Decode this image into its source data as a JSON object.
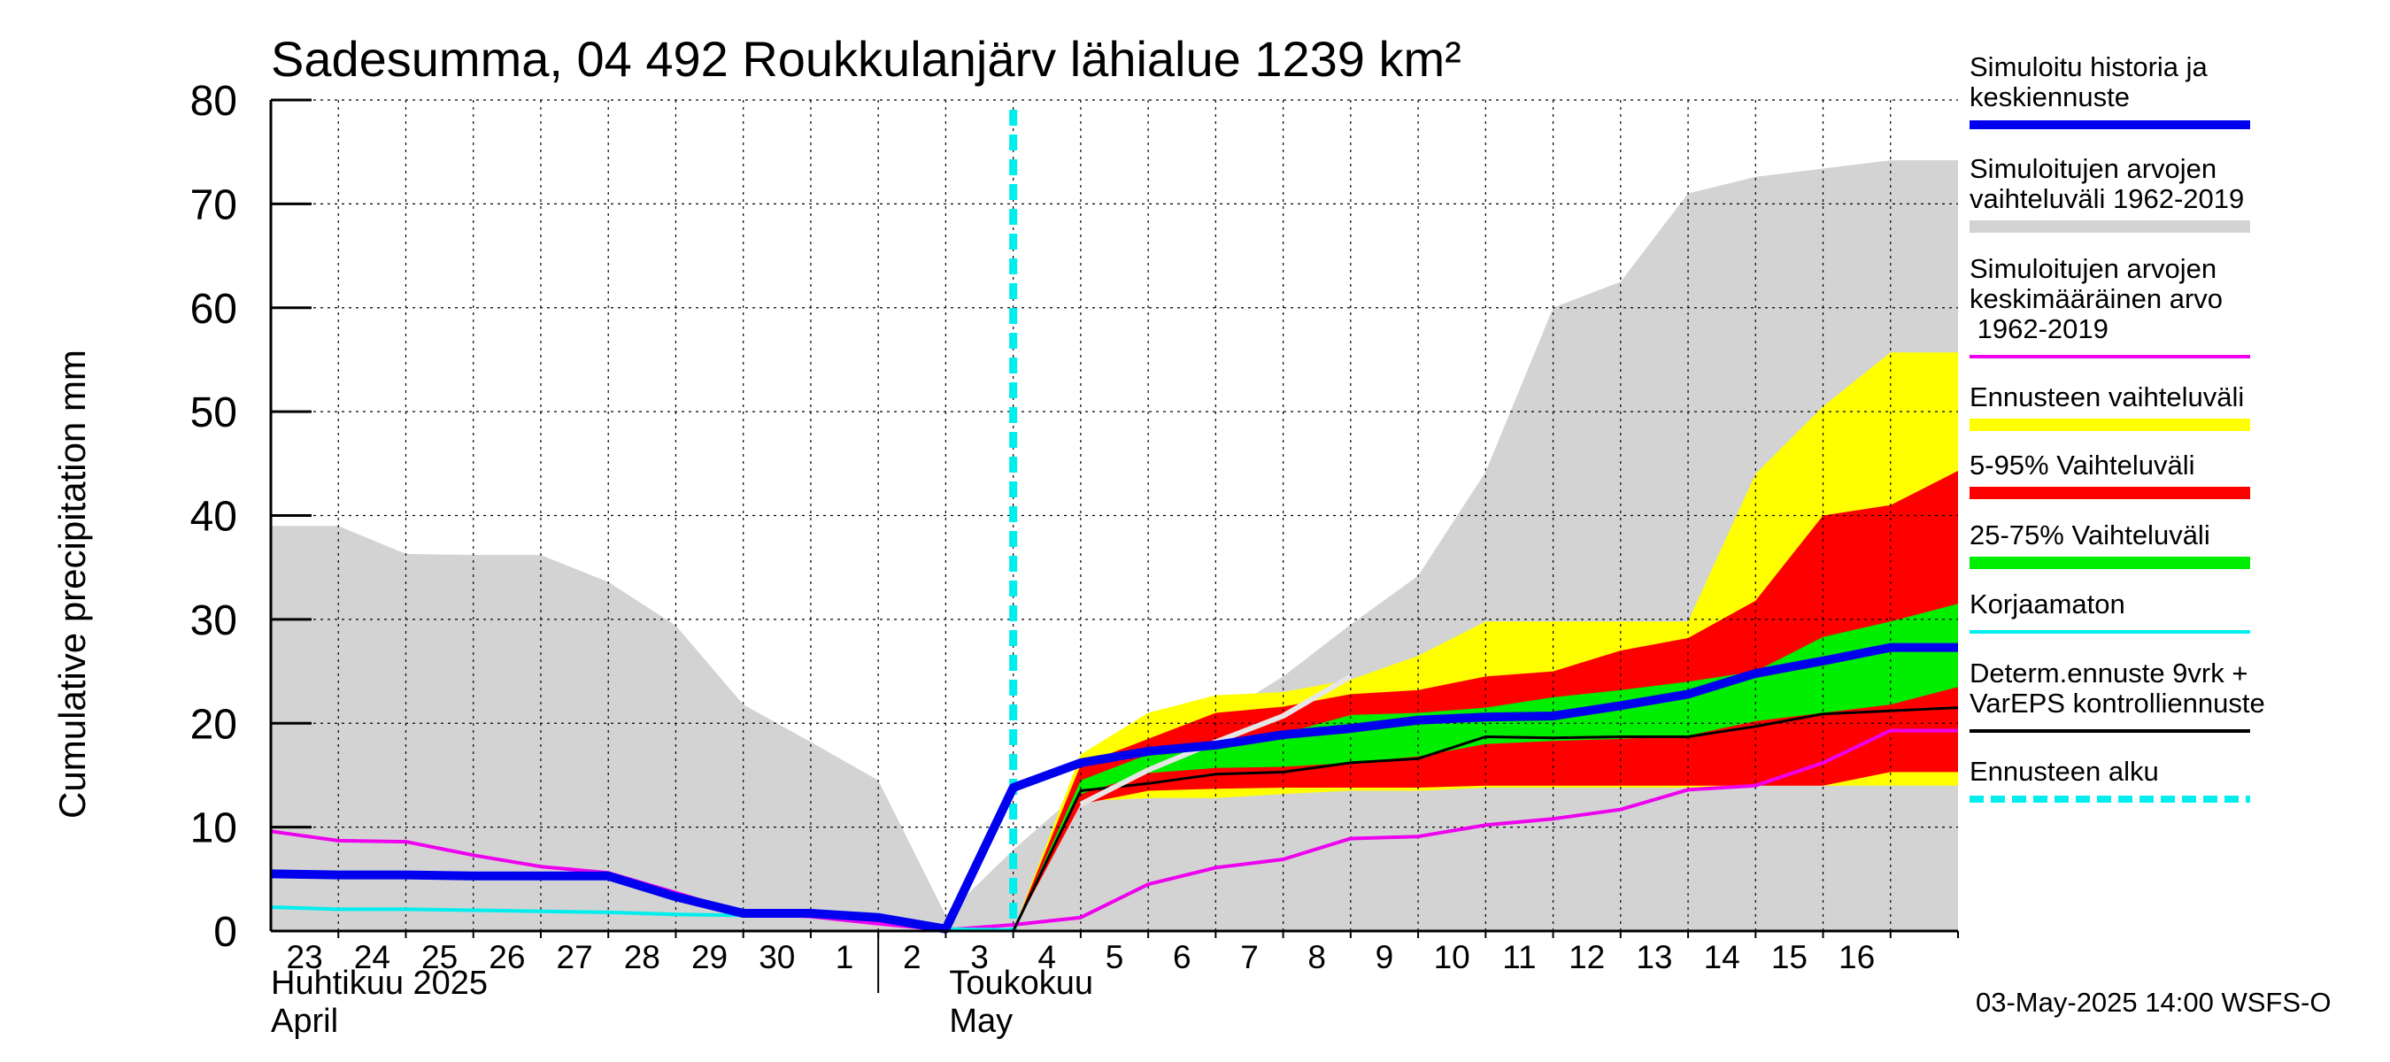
{
  "chart_data": {
    "type": "area",
    "title": "Sadesumma, 04 492 Roukkulanjärv lähialue 1239 km²",
    "ylabel": "Cumulative precipitation   mm",
    "ylim": [
      0,
      80
    ],
    "yticks": [
      0,
      10,
      20,
      30,
      40,
      50,
      60,
      70,
      80
    ],
    "grid": true,
    "legend_position": "right",
    "x_dates": [
      "2025-04-22",
      "2025-04-23",
      "2025-04-24",
      "2025-04-25",
      "2025-04-26",
      "2025-04-27",
      "2025-04-28",
      "2025-04-29",
      "2025-04-30",
      "2025-05-01",
      "2025-05-02",
      "2025-05-03",
      "2025-05-04",
      "2025-05-05",
      "2025-05-06",
      "2025-05-07",
      "2025-05-08",
      "2025-05-09",
      "2025-05-10",
      "2025-05-11",
      "2025-05-12",
      "2025-05-13",
      "2025-05-14",
      "2025-05-15",
      "2025-05-16",
      "2025-05-17"
    ],
    "x_tick_labels": [
      "23",
      "24",
      "25",
      "26",
      "27",
      "28",
      "29",
      "30",
      "1",
      "2",
      "3",
      "4",
      "5",
      "6",
      "7",
      "8",
      "9",
      "10",
      "11",
      "12",
      "13",
      "14",
      "15",
      "16"
    ],
    "month_labels": [
      {
        "line1": "Huhtikuu  2025",
        "line2": "April"
      },
      {
        "line1": "Toukokuu",
        "line2": "May"
      }
    ],
    "forecast_start": "2025-05-03",
    "colors": {
      "history": "#0000ee",
      "hist_range": "#d3d3d3",
      "hist_mean": "#ee00ee",
      "ens_range": "#ffff00",
      "p5_95": "#ff0000",
      "p25_75": "#00ee00",
      "uncorrected": "#00eeee",
      "determ": "#000000",
      "forecast_start": "#00eeee"
    },
    "series": [
      {
        "name": "Simuloitujen arvojen vaihteluväli 1962-2019",
        "kind": "band",
        "x": [
          "2025-04-22",
          "2025-04-23",
          "2025-04-24",
          "2025-04-25",
          "2025-04-26",
          "2025-04-27",
          "2025-04-28",
          "2025-04-29",
          "2025-04-30",
          "2025-05-01",
          "2025-05-02",
          "2025-05-03",
          "2025-05-04",
          "2025-05-05",
          "2025-05-06",
          "2025-05-07",
          "2025-05-08",
          "2025-05-09",
          "2025-05-10",
          "2025-05-11",
          "2025-05-12",
          "2025-05-13",
          "2025-05-14",
          "2025-05-15",
          "2025-05-16",
          "2025-05-17"
        ],
        "upper": [
          39,
          39,
          36.3,
          36.2,
          36.2,
          33.6,
          29.4,
          21.8,
          18.2,
          14.5,
          1.5,
          7.8,
          13.5,
          17.4,
          20.5,
          24.5,
          29.5,
          34.2,
          44.2,
          60,
          62.5,
          71,
          72.6,
          73.4,
          74.2,
          74.2
        ],
        "lower": [
          0,
          0,
          0,
          0,
          0,
          0,
          0,
          0,
          0,
          0,
          0,
          0,
          0,
          0,
          0,
          0,
          0,
          0,
          0,
          0,
          0,
          0,
          0,
          0,
          0,
          0
        ]
      },
      {
        "name": "Ennusteen vaihteluväli",
        "kind": "band",
        "x": [
          "2025-05-03",
          "2025-05-04",
          "2025-05-05",
          "2025-05-06",
          "2025-05-07",
          "2025-05-08",
          "2025-05-09",
          "2025-05-10",
          "2025-05-11",
          "2025-05-12",
          "2025-05-13",
          "2025-05-14",
          "2025-05-15",
          "2025-05-16",
          "2025-05-17"
        ],
        "upper": [
          0,
          17,
          21,
          22.7,
          23,
          24.2,
          26.5,
          29.8,
          29.8,
          29.8,
          29.8,
          44,
          50.5,
          55.7,
          55.7
        ],
        "lower": [
          0,
          12.5,
          12.8,
          12.8,
          13.2,
          13.5,
          13.5,
          13.8,
          13.8,
          13.8,
          13.8,
          14,
          14,
          14,
          14
        ]
      },
      {
        "name": "5-95% Vaihteluväli",
        "kind": "band",
        "x": [
          "2025-05-03",
          "2025-05-04",
          "2025-05-05",
          "2025-05-06",
          "2025-05-07",
          "2025-05-08",
          "2025-05-09",
          "2025-05-10",
          "2025-05-11",
          "2025-05-12",
          "2025-05-13",
          "2025-05-14",
          "2025-05-15",
          "2025-05-16",
          "2025-05-17"
        ],
        "upper": [
          0,
          16,
          18.5,
          21,
          21.6,
          22.8,
          23.2,
          24.5,
          25,
          27,
          28.2,
          31.8,
          40,
          41,
          44.3
        ],
        "lower": [
          0,
          12.2,
          13.5,
          13.7,
          13.8,
          13.8,
          13.8,
          14,
          14,
          14,
          14,
          14,
          14,
          15.3,
          15.3
        ]
      },
      {
        "name": "25-75% Vaihteluväli",
        "kind": "band",
        "x": [
          "2025-05-03",
          "2025-05-04",
          "2025-05-05",
          "2025-05-06",
          "2025-05-07",
          "2025-05-08",
          "2025-05-09",
          "2025-05-10",
          "2025-05-11",
          "2025-05-12",
          "2025-05-13",
          "2025-05-14",
          "2025-05-15",
          "2025-05-16",
          "2025-05-17"
        ],
        "upper": [
          0,
          14.5,
          17,
          18.3,
          19,
          20.8,
          21,
          21.5,
          22.5,
          23.2,
          24,
          25,
          28.3,
          29.8,
          31.5
        ],
        "lower": [
          0,
          13.2,
          15.2,
          15.7,
          15.8,
          16.2,
          16.8,
          18,
          18.3,
          18.5,
          18.8,
          20.2,
          21,
          21.8,
          23.5
        ]
      },
      {
        "name": "Simuloitu historia ja keskiennuste",
        "kind": "line",
        "x": [
          "2025-04-22",
          "2025-04-23",
          "2025-04-24",
          "2025-04-25",
          "2025-04-26",
          "2025-04-27",
          "2025-04-28",
          "2025-04-29",
          "2025-04-30",
          "2025-05-01",
          "2025-05-02",
          "2025-05-03",
          "2025-05-04",
          "2025-05-05",
          "2025-05-06",
          "2025-05-07",
          "2025-05-08",
          "2025-05-09",
          "2025-05-10",
          "2025-05-11",
          "2025-05-12",
          "2025-05-13",
          "2025-05-14",
          "2025-05-15",
          "2025-05-16",
          "2025-05-17"
        ],
        "y": [
          5.5,
          5.4,
          5.4,
          5.3,
          5.3,
          5.3,
          3.3,
          1.7,
          1.7,
          1.3,
          0.2,
          13.8,
          16.2,
          17.3,
          17.9,
          18.9,
          19.5,
          20.3,
          20.6,
          20.7,
          21.7,
          22.8,
          24.8,
          26,
          27.3,
          27.3
        ]
      },
      {
        "name": "Simuloitujen arvojen keskimääräinen arvo 1962-2019",
        "kind": "line",
        "x": [
          "2025-04-22",
          "2025-04-23",
          "2025-04-24",
          "2025-04-25",
          "2025-04-26",
          "2025-04-27",
          "2025-04-28",
          "2025-04-29",
          "2025-04-30",
          "2025-05-01",
          "2025-05-02",
          "2025-05-03",
          "2025-05-04",
          "2025-05-05",
          "2025-05-06",
          "2025-05-07",
          "2025-05-08",
          "2025-05-09",
          "2025-05-10",
          "2025-05-11",
          "2025-05-12",
          "2025-05-13",
          "2025-05-14",
          "2025-05-15",
          "2025-05-16",
          "2025-05-17"
        ],
        "y": [
          9.6,
          8.7,
          8.6,
          7.3,
          6.2,
          5.6,
          3.7,
          1.7,
          1.4,
          0.7,
          0.1,
          0.6,
          1.3,
          4.5,
          6.1,
          6.9,
          8.9,
          9.1,
          10.2,
          10.8,
          11.7,
          13.6,
          14,
          16.2,
          19.3,
          19.3
        ]
      },
      {
        "name": "Korjaamaton",
        "kind": "line",
        "x": [
          "2025-04-22",
          "2025-04-23",
          "2025-04-24",
          "2025-04-25",
          "2025-04-26",
          "2025-04-27",
          "2025-04-28",
          "2025-04-29",
          "2025-04-30",
          "2025-05-01",
          "2025-05-02",
          "2025-05-03"
        ],
        "y": [
          2.3,
          2.1,
          2.1,
          2,
          1.9,
          1.8,
          1.6,
          1.5,
          1.5,
          1.2,
          0.2,
          0.1
        ]
      },
      {
        "name": "Determ.ennuste 9vrk + VarEPS kontrolliennuste",
        "kind": "line",
        "x": [
          "2025-05-03",
          "2025-05-04",
          "2025-05-05",
          "2025-05-06",
          "2025-05-07",
          "2025-05-08",
          "2025-05-09",
          "2025-05-10",
          "2025-05-11",
          "2025-05-12",
          "2025-05-13",
          "2025-05-14",
          "2025-05-15",
          "2025-05-16",
          "2025-05-17"
        ],
        "y": [
          0,
          13.5,
          14.2,
          15.1,
          15.3,
          16.2,
          16.6,
          18.7,
          18.6,
          18.7,
          18.7,
          19.7,
          20.9,
          21.2,
          21.5
        ]
      },
      {
        "name": "",
        "kind": "line",
        "x": [
          "2025-05-04",
          "2025-05-05",
          "2025-05-06",
          "2025-05-07",
          "2025-05-08"
        ],
        "y": [
          12.2,
          15.5,
          18.2,
          20.7,
          24.5
        ]
      }
    ],
    "legend": [
      {
        "label": "Simuloitu historia ja keskiennuste",
        "style": "line-thick",
        "color": "#0000ee"
      },
      {
        "label": "Simuloitujen arvojen vaihteluväli 1962-2019",
        "style": "band",
        "color": "#d3d3d3"
      },
      {
        "label": "Simuloitujen arvojen keskimääräinen arvo 1962-2019",
        "style": "line",
        "color": "#ee00ee"
      },
      {
        "label": "Ennusteen vaihteluväli",
        "style": "band",
        "color": "#ffff00"
      },
      {
        "label": "5-95% Vaihteluväli",
        "style": "band",
        "color": "#ff0000"
      },
      {
        "label": "25-75% Vaihteluväli",
        "style": "band",
        "color": "#00ee00"
      },
      {
        "label": "Korjaamaton",
        "style": "line",
        "color": "#00eeee"
      },
      {
        "label": "Determ.ennuste 9vrk + VarEPS kontrolliennuste",
        "style": "line",
        "color": "#000000"
      },
      {
        "label": "Ennusteen alku",
        "style": "dashed",
        "color": "#00eeee"
      }
    ],
    "footer": "03-May-2025 14:00 WSFS-O"
  }
}
